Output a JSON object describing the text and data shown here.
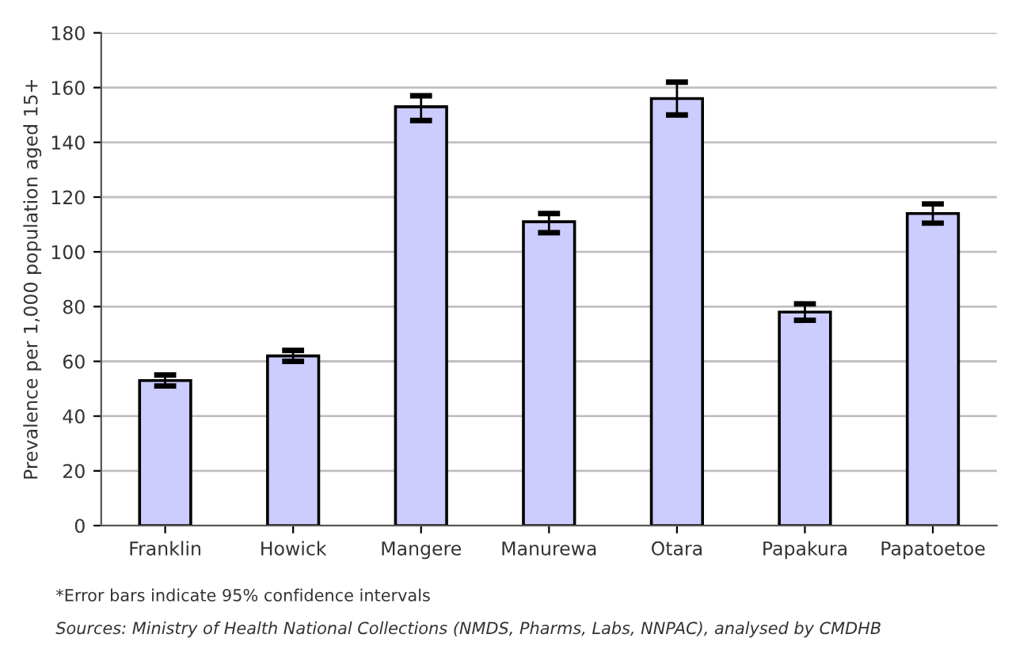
{
  "chart_data": {
    "type": "bar",
    "ylabel": "Prevalence per 1,000 population aged 15+",
    "categories": [
      "Franklin",
      "Howick",
      "Mangere",
      "Manurewa",
      "Otara",
      "Papakura",
      "Papatoetoe"
    ],
    "values": [
      53,
      62,
      153,
      111,
      156,
      78,
      114
    ],
    "errors": [
      [
        51,
        55
      ],
      [
        60,
        64
      ],
      [
        148,
        157
      ],
      [
        107,
        114
      ],
      [
        150,
        162
      ],
      [
        75,
        81
      ],
      [
        110.5,
        117.5
      ]
    ],
    "color": "#ccccff",
    "ylim": [
      0,
      180
    ],
    "yticks": [
      0,
      20,
      40,
      60,
      80,
      100,
      120,
      140,
      160,
      180
    ],
    "grid": "y",
    "annotations": [
      "*Error bars indicate 95% confidence intervals",
      "Sources: Ministry of Health National Collections (NMDS, Pharms, Labs, NNPAC), analysed by CMDHB"
    ]
  }
}
